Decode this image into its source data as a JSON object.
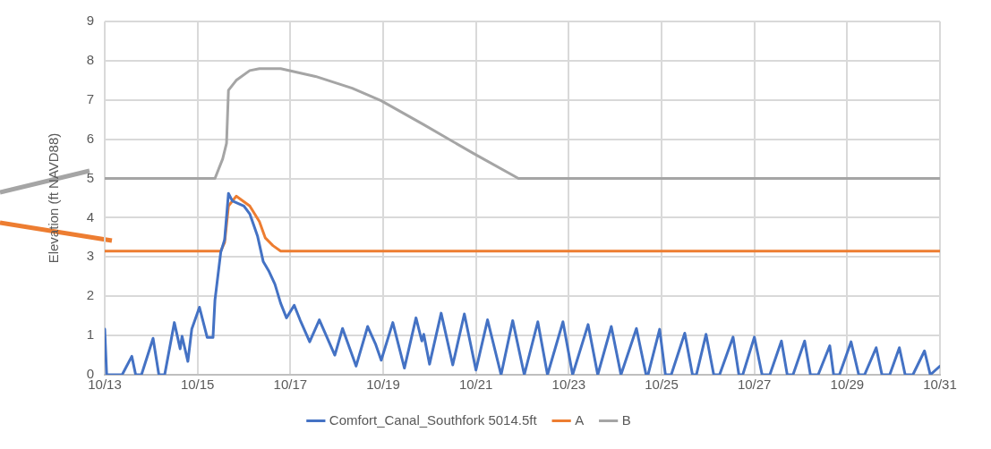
{
  "chart_data": {
    "type": "line",
    "ylabel": "Elevation (ft NAVD88)",
    "xlim": [
      "--10-13",
      "--10-31"
    ],
    "ylim": [
      0,
      9
    ],
    "xticks": [
      {
        "value": "--10-13",
        "label": "10/13"
      },
      {
        "value": "--10-15",
        "label": "10/15"
      },
      {
        "value": "--10-17",
        "label": "10/17"
      },
      {
        "value": "--10-19",
        "label": "10/19"
      },
      {
        "value": "--10-21",
        "label": "10/21"
      },
      {
        "value": "--10-23",
        "label": "10/23"
      },
      {
        "value": "--10-25",
        "label": "10/25"
      },
      {
        "value": "--10-27",
        "label": "10/27"
      },
      {
        "value": "--10-29",
        "label": "10/29"
      },
      {
        "value": "--10-31",
        "label": "10/31"
      }
    ],
    "yticks": [
      0,
      1,
      2,
      3,
      4,
      5,
      6,
      7,
      8,
      9
    ],
    "grid": true,
    "legend": "bottom",
    "marker": "none",
    "line_style": "solid",
    "series": [
      {
        "name": "Comfort_Canal_Southfork 5014.5ft",
        "color": "#4472c4",
        "x": [
          "--10-13T00:00",
          "--10-13T01:00",
          "--10-13T09:00",
          "--10-13T14:00",
          "--10-13T16:00",
          "--10-13T19:00",
          "--10-14T01:00",
          "--10-14T04:00",
          "--10-14T07:00",
          "--10-14T12:00",
          "--10-14T15:00",
          "--10-14T16:00",
          "--10-14T19:00",
          "--10-14T21:00",
          "--10-15T01:00",
          "--10-15T05:00",
          "--10-15T08:00",
          "--10-15T09:00",
          "--10-15T12:00",
          "--10-15T14:00",
          "--10-15T16:00",
          "--10-15T18:00",
          "--10-16T00:00",
          "--10-16T03:00",
          "--10-16T07:00",
          "--10-16T10:00",
          "--10-16T13:00",
          "--10-16T16:00",
          "--10-16T19:00",
          "--10-16T22:00",
          "--10-17T02:00",
          "--10-17T05:00",
          "--10-17T10:00",
          "--10-17T15:00",
          "--10-17T23:00",
          "--10-18T03:00",
          "--10-18T10:00",
          "--10-18T16:00",
          "--10-18T20:00",
          "--10-18T23:00",
          "--10-19T05:00",
          "--10-19T11:00",
          "--10-19T17:00",
          "--10-19T20:00",
          "--10-19T21:00",
          "--10-20T00:00",
          "--10-20T06:00",
          "--10-20T12:00",
          "--10-20T18:00",
          "--10-21T00:00",
          "--10-21T06:00",
          "--10-21T13:00",
          "--10-21T19:00",
          "--10-22T01:00",
          "--10-22T08:00",
          "--10-22T13:00",
          "--10-22T21:00",
          "--10-23T02:00",
          "--10-23T10:00",
          "--10-23T15:00",
          "--10-23T22:00",
          "--10-24T03:00",
          "--10-24T11:00",
          "--10-24T16:00",
          "--10-24T17:00",
          "--10-24T23:00",
          "--10-25T02:00",
          "--10-25T05:00",
          "--10-25T12:00",
          "--10-25T16:00",
          "--10-25T18:00",
          "--10-25T23:00",
          "--10-26T03:00",
          "--10-26T06:00",
          "--10-26T13:00",
          "--10-26T16:00",
          "--10-26T18:00",
          "--10-27T00:00",
          "--10-27T04:00",
          "--10-27T08:00",
          "--10-27T14:00",
          "--10-27T17:00",
          "--10-27T20:00",
          "--10-28T02:00",
          "--10-28T05:00",
          "--10-28T09:00",
          "--10-28T15:00",
          "--10-28T17:00",
          "--10-28T20:00",
          "--10-29T02:00",
          "--10-29T06:00",
          "--10-29T09:00",
          "--10-29T15:00",
          "--10-29T18:00",
          "--10-29T22:00",
          "--10-30T03:00",
          "--10-30T06:00",
          "--10-30T10:00",
          "--10-30T16:00",
          "--10-30T19:00",
          "--10-31T00:00"
        ],
        "values": [
          1.16,
          0,
          0,
          0.47,
          0,
          0,
          0.93,
          0,
          0,
          1.33,
          0.66,
          0.98,
          0.34,
          1.16,
          1.72,
          0.95,
          0.95,
          1.9,
          3.12,
          3.44,
          4.62,
          4.43,
          4.3,
          4.1,
          3.54,
          2.88,
          2.63,
          2.31,
          1.82,
          1.45,
          1.77,
          1.4,
          0.84,
          1.4,
          0.5,
          1.18,
          0.22,
          1.23,
          0.79,
          0.37,
          1.33,
          0.17,
          1.45,
          0.86,
          1.03,
          0.27,
          1.57,
          0.25,
          1.55,
          0.12,
          1.4,
          0,
          1.38,
          0,
          1.35,
          0,
          1.35,
          0,
          1.28,
          0,
          1.23,
          0,
          1.18,
          0,
          0,
          1.16,
          0,
          0,
          1.06,
          0,
          0,
          1.03,
          0,
          0,
          0.96,
          0,
          0,
          0.96,
          0,
          0,
          0.86,
          0,
          0,
          0.86,
          0,
          0,
          0.74,
          0,
          0,
          0.84,
          0,
          0,
          0.69,
          0,
          0,
          0.69,
          0,
          0,
          0.61,
          0,
          0.22
        ]
      },
      {
        "name": "A",
        "color": "#ed7d31",
        "x": [
          "--10-13T00:00",
          "--10-15T12:00",
          "--10-15T14:00",
          "--10-15T16:00",
          "--10-15T20:00",
          "--10-16T03:00",
          "--10-16T08:00",
          "--10-16T11:00",
          "--10-16T15:00",
          "--10-16T19:00",
          "--10-31T00:00"
        ],
        "values": [
          3.15,
          3.15,
          3.37,
          4.3,
          4.55,
          4.3,
          3.9,
          3.49,
          3.29,
          3.15,
          3.15
        ]
      },
      {
        "name": "B",
        "color": "#a5a5a5",
        "x": [
          "--10-13T00:00",
          "--10-15T09:00",
          "--10-15T13:00",
          "--10-15T15:00",
          "--10-15T16:00",
          "--10-15T20:00",
          "--10-16T03:00",
          "--10-16T08:00",
          "--10-16T19:00",
          "--10-17T13:00",
          "--10-18T08:00",
          "--10-18T23:00",
          "--10-19T21:00",
          "--10-20T23:00",
          "--10-21T22:00",
          "--10-31T00:00"
        ],
        "values": [
          5,
          5,
          5.5,
          5.9,
          7.25,
          7.5,
          7.75,
          7.8,
          7.8,
          7.6,
          7.3,
          6.98,
          6.37,
          5.63,
          5,
          5
        ]
      }
    ]
  }
}
